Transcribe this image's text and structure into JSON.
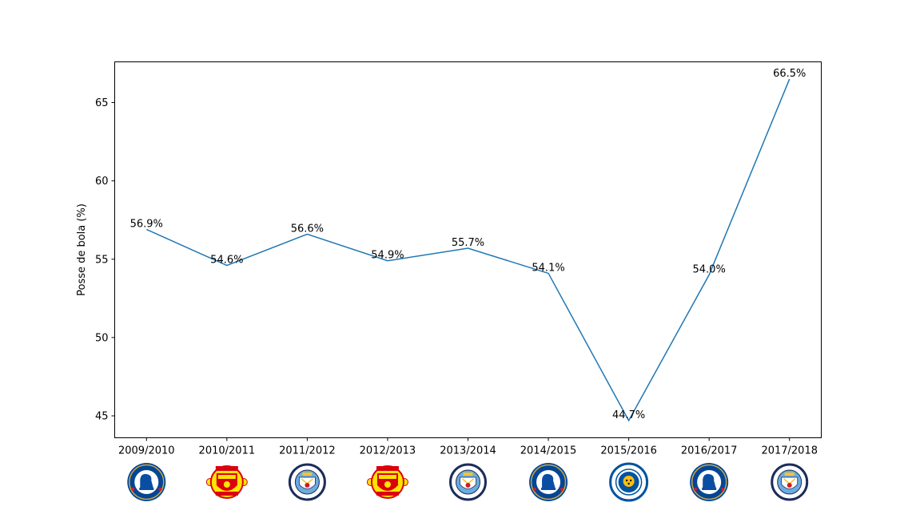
{
  "chart_data": {
    "type": "line",
    "title": "",
    "xlabel": "",
    "ylabel": "Posse de bola (%)",
    "categories": [
      "2009/2010",
      "2010/2011",
      "2011/2012",
      "2012/2013",
      "2013/2014",
      "2014/2015",
      "2015/2016",
      "2016/2017",
      "2017/2018"
    ],
    "values": [
      56.9,
      54.6,
      56.6,
      54.9,
      55.7,
      54.1,
      44.7,
      54.0,
      66.5
    ],
    "data_labels": [
      "56.9%",
      "54.6%",
      "56.6%",
      "54.9%",
      "55.7%",
      "54.1%",
      "44.7%",
      "54.0%",
      "66.5%"
    ],
    "yticks": [
      45,
      50,
      55,
      60,
      65
    ],
    "ylim": [
      43.6,
      67.6
    ],
    "grid": false,
    "legend": "none",
    "line_color": "#1f77b4",
    "champion_logos": [
      {
        "club": "Chelsea",
        "icon": "chelsea-crest-icon",
        "ring_text": "CHELSEA",
        "colors": {
          "ring": "#034694",
          "inner": "#0a4ea3",
          "accent": "#d11a2a"
        }
      },
      {
        "club": "Manchester United",
        "icon": "manchester-united-crest-icon",
        "ring_text": "MANCHESTER UNITED",
        "colors": {
          "ring": "#da020e",
          "inner": "#ffe500",
          "accent": "#000000"
        }
      },
      {
        "club": "Manchester City",
        "icon": "manchester-city-crest-icon",
        "ring_text": "MANCHESTER CITY",
        "colors": {
          "ring": "#1c2c5b",
          "inner": "#6cabdd",
          "accent": "#f4c430"
        }
      },
      {
        "club": "Manchester United",
        "icon": "manchester-united-crest-icon",
        "ring_text": "MANCHESTER UNITED",
        "colors": {
          "ring": "#da020e",
          "inner": "#ffe500",
          "accent": "#000000"
        }
      },
      {
        "club": "Manchester City",
        "icon": "manchester-city-crest-icon",
        "ring_text": "MANCHESTER CITY",
        "colors": {
          "ring": "#1c2c5b",
          "inner": "#6cabdd",
          "accent": "#f4c430"
        }
      },
      {
        "club": "Chelsea",
        "icon": "chelsea-crest-icon",
        "ring_text": "CHELSEA",
        "colors": {
          "ring": "#034694",
          "inner": "#0a4ea3",
          "accent": "#d11a2a"
        }
      },
      {
        "club": "Leicester City",
        "icon": "leicester-city-crest-icon",
        "ring_text": "LEICESTER CITY",
        "colors": {
          "ring": "#0053a0",
          "inner": "#ffffff",
          "accent": "#fdbe11"
        }
      },
      {
        "club": "Chelsea",
        "icon": "chelsea-crest-icon",
        "ring_text": "CHELSEA",
        "colors": {
          "ring": "#034694",
          "inner": "#0a4ea3",
          "accent": "#d11a2a"
        }
      },
      {
        "club": "Manchester City",
        "icon": "manchester-city-crest-icon",
        "ring_text": "MANCHESTER CITY",
        "colors": {
          "ring": "#1c2c5b",
          "inner": "#6cabdd",
          "accent": "#f4c430"
        }
      }
    ]
  }
}
